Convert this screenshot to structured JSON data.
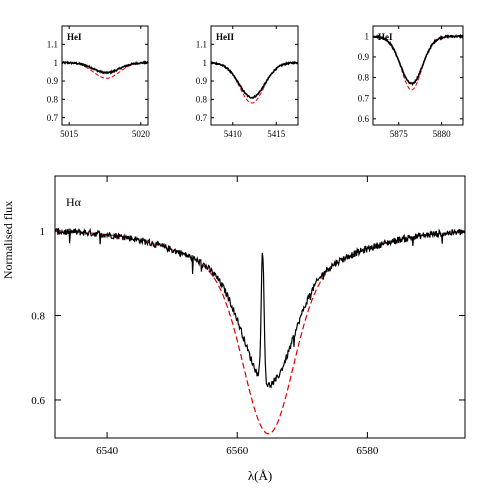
{
  "figure": {
    "ylabel": "Normalised flux",
    "xlabel": "λ(Å)"
  },
  "colors": {
    "observed": "#000000",
    "model": "#dd0000"
  },
  "chart_data": [
    {
      "type": "line",
      "title": "HeI",
      "xlim": [
        5014.5,
        5020.5
      ],
      "ylim": [
        0.66,
        1.2
      ],
      "xticks": [
        "5015",
        "5020"
      ],
      "yticks": [
        "0.7",
        "0.8",
        "0.9",
        "1",
        "1.1"
      ],
      "line": {
        "center": 5017.6,
        "obs_depth": 0.055,
        "obs_width": 0.9,
        "model_depth": 0.085,
        "model_width": 0.9
      },
      "series": [
        {
          "role": "observed",
          "style": "solid"
        },
        {
          "role": "model",
          "style": "dashed"
        }
      ]
    },
    {
      "type": "line",
      "title": "HeII",
      "xlim": [
        5407.5,
        5417.5
      ],
      "ylim": [
        0.66,
        1.2
      ],
      "xticks": [
        "5410",
        "5415"
      ],
      "yticks": [
        "0.7",
        "0.8",
        "0.9",
        "1",
        "1.1"
      ],
      "line": {
        "center": 5412.2,
        "obs_depth": 0.19,
        "obs_width": 1.5,
        "model_depth": 0.22,
        "model_width": 1.4
      },
      "series": [
        {
          "role": "observed",
          "style": "solid"
        },
        {
          "role": "model",
          "style": "dashed"
        }
      ]
    },
    {
      "type": "line",
      "title": "HeI",
      "xlim": [
        5872,
        5882.5
      ],
      "ylim": [
        0.57,
        1.05
      ],
      "xticks": [
        "5875",
        "5880"
      ],
      "yticks": [
        "0.6",
        "0.7",
        "0.8",
        "0.9",
        "1"
      ],
      "line": {
        "center": 5876.5,
        "obs_depth": 0.23,
        "obs_width": 1.3,
        "model_depth": 0.26,
        "model_width": 1.2
      },
      "series": [
        {
          "role": "observed",
          "style": "solid"
        },
        {
          "role": "model",
          "style": "dashed"
        }
      ]
    },
    {
      "type": "line",
      "title": "Hα",
      "xlim": [
        6532,
        6595
      ],
      "ylim": [
        0.51,
        1.13
      ],
      "xticks": [
        "6540",
        "6560",
        "6580"
      ],
      "yticks": [
        "0.6",
        "0.8",
        "1"
      ],
      "line": {
        "center": 6564.8,
        "obs_depth": 0.255,
        "obs_width": 3.7,
        "model_depth": 0.37,
        "model_width": 3.7,
        "wing_depth": 0.11,
        "wing_width": 11
      },
      "emission": {
        "center": 6563.9,
        "height": 0.31,
        "width": 0.22
      },
      "series": [
        {
          "role": "observed",
          "style": "solid"
        },
        {
          "role": "model",
          "style": "dashed"
        }
      ]
    }
  ]
}
